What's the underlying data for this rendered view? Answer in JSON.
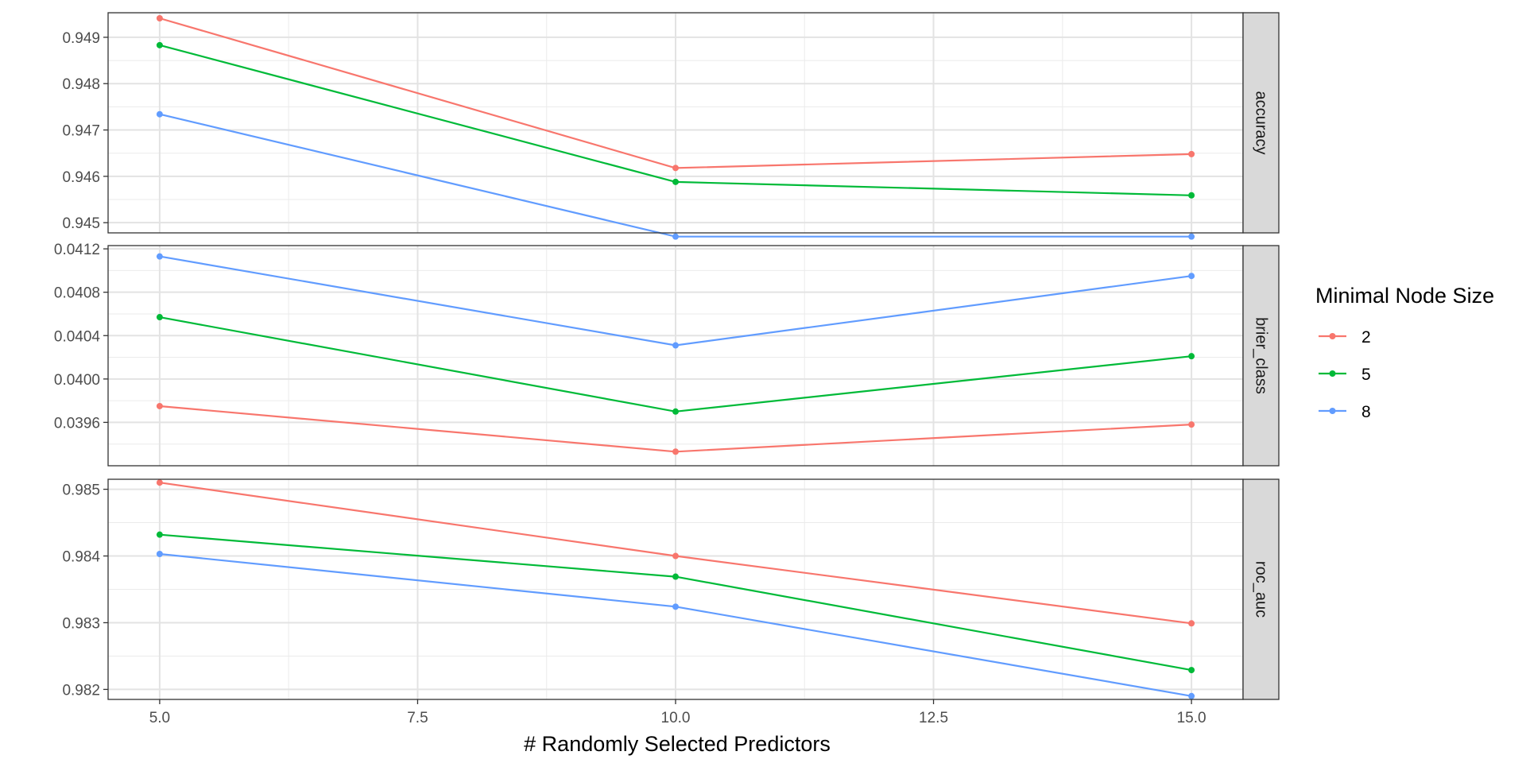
{
  "chart_data": {
    "type": "line",
    "xlabel": "# Randomly Selected Predictors",
    "x": [
      5,
      10,
      15
    ],
    "xlim": [
      4.5,
      15.5
    ],
    "xticks": [
      "5.0",
      "7.5",
      "10.0",
      "12.5",
      "15.0"
    ],
    "xtick_values": [
      5,
      7.5,
      10,
      12.5,
      15
    ],
    "grid": true,
    "legend": {
      "title": "Minimal Node Size",
      "placement": "right",
      "entries": [
        {
          "label": "2",
          "color": "#F8766D"
        },
        {
          "label": "5",
          "color": "#00BA38"
        },
        {
          "label": "8",
          "color": "#619CFF"
        }
      ]
    },
    "facets": [
      {
        "strip": "accuracy",
        "ylim": [
          0.94478,
          0.94953
        ],
        "yticks": [
          "0.945",
          "0.946",
          "0.947",
          "0.948",
          "0.949"
        ],
        "ytick_values": [
          0.945,
          0.946,
          0.947,
          0.948,
          0.949
        ],
        "series": [
          {
            "name": "2",
            "values": [
              0.94941,
              0.94618,
              0.94648
            ]
          },
          {
            "name": "5",
            "values": [
              0.94883,
              0.94588,
              0.94559
            ]
          },
          {
            "name": "8",
            "values": [
              0.94734,
              0.9447,
              0.9447
            ]
          }
        ]
      },
      {
        "strip": "brier_class",
        "ylim": [
          0.0392,
          0.04123
        ],
        "yticks": [
          "0.0396",
          "0.0400",
          "0.0404",
          "0.0408",
          "0.0412"
        ],
        "ytick_values": [
          0.0396,
          0.04,
          0.0404,
          0.0408,
          0.0412
        ],
        "series": [
          {
            "name": "2",
            "values": [
              0.03975,
              0.03933,
              0.03958
            ]
          },
          {
            "name": "5",
            "values": [
              0.04057,
              0.0397,
              0.04021
            ]
          },
          {
            "name": "8",
            "values": [
              0.04113,
              0.04031,
              0.04095
            ]
          }
        ]
      },
      {
        "strip": "roc_auc",
        "ylim": [
          0.98185,
          0.98515
        ],
        "yticks": [
          "0.982",
          "0.983",
          "0.984",
          "0.985"
        ],
        "ytick_values": [
          0.982,
          0.983,
          0.984,
          0.985
        ],
        "series": [
          {
            "name": "2",
            "values": [
              0.9851,
              0.984,
              0.98299
            ]
          },
          {
            "name": "5",
            "values": [
              0.98432,
              0.98369,
              0.98229
            ]
          },
          {
            "name": "8",
            "values": [
              0.98403,
              0.98324,
              0.9819
            ]
          }
        ]
      }
    ]
  }
}
